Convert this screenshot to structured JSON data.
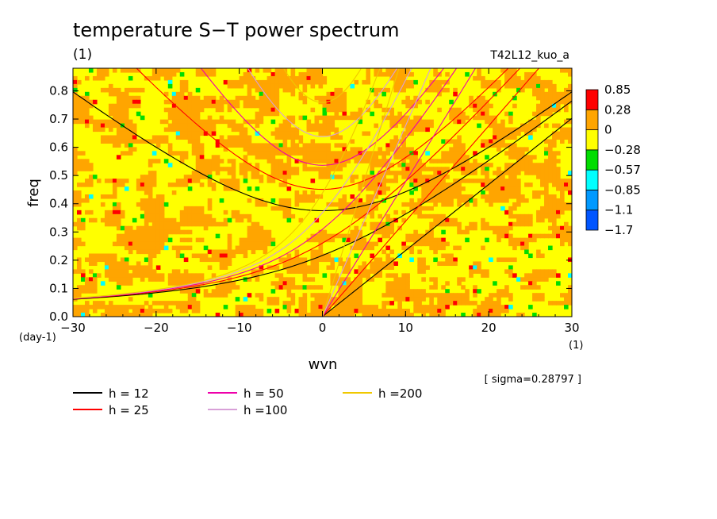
{
  "chart_data": {
    "type": "heatmap",
    "title": "temperature S−T power spectrum",
    "subtitle": "(1)",
    "run_label": "T42L12_kuo_a",
    "xlabel": "wvn",
    "ylabel": "freq",
    "x_unit": "(1)",
    "y_unit": "(day-1)",
    "xlim": [
      -30,
      30
    ],
    "ylim": [
      0,
      0.88
    ],
    "x_ticks": [
      -30,
      -20,
      -10,
      0,
      10,
      20,
      30
    ],
    "x_tick_labels": [
      "−30",
      "−20",
      "−10",
      "0",
      "10",
      "20",
      "30"
    ],
    "y_ticks": [
      0,
      0.1,
      0.2,
      0.3,
      0.4,
      0.5,
      0.6,
      0.7,
      0.8
    ],
    "y_tick_labels": [
      "0.0",
      "0.1",
      "0.2",
      "0.3",
      "0.4",
      "0.5",
      "0.6",
      "0.7",
      "0.8"
    ],
    "sigma_text": "[ sigma=0.28797 ]",
    "colorbar": {
      "colors": [
        "#0055ff",
        "#0099ff",
        "#00ffff",
        "#00dd00",
        "#ffff00",
        "#ffa500",
        "#ff0000"
      ],
      "labels": [
        "−1.7",
        "−1.1",
        "−0.85",
        "−0.57",
        "−0.28",
        "0",
        "0.28",
        "0.85"
      ]
    },
    "field_colors": {
      "background": "#ffff00",
      "positive": "#ffa500",
      "high": "#ff0000",
      "low": "#00dd00",
      "lower": "#00ffff",
      "lowest": "#0099ff"
    },
    "dispersion_curves": [
      {
        "label": "h = 12",
        "color": "#000000"
      },
      {
        "label": "h = 25",
        "color": "#ff0000"
      },
      {
        "label": "h = 50",
        "color": "#ee00aa"
      },
      {
        "label": "h =100",
        "color": "#d8a0d8"
      },
      {
        "label": "h =200",
        "color": "#f0c800"
      }
    ]
  }
}
